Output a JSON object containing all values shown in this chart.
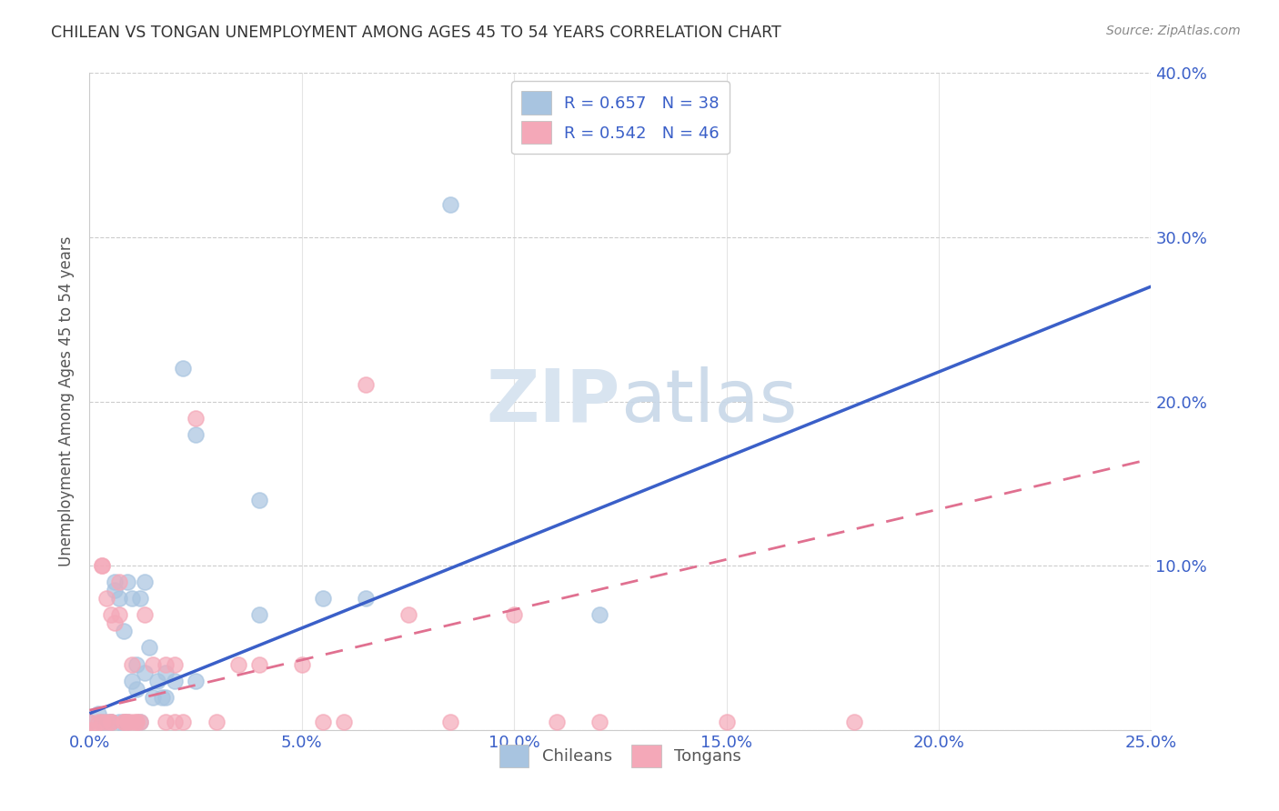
{
  "title": "CHILEAN VS TONGAN UNEMPLOYMENT AMONG AGES 45 TO 54 YEARS CORRELATION CHART",
  "source": "Source: ZipAtlas.com",
  "ylabel": "Unemployment Among Ages 45 to 54 years",
  "xlim": [
    0.0,
    0.25
  ],
  "ylim": [
    0.0,
    0.4
  ],
  "xticks": [
    0.0,
    0.05,
    0.1,
    0.15,
    0.2,
    0.25
  ],
  "yticks": [
    0.0,
    0.1,
    0.2,
    0.3,
    0.4
  ],
  "xtick_labels": [
    "0.0%",
    "5.0%",
    "10.0%",
    "15.0%",
    "20.0%",
    "25.0%"
  ],
  "ytick_labels_right": [
    "",
    "10.0%",
    "20.0%",
    "30.0%",
    "40.0%"
  ],
  "chilean_color": "#a8c4e0",
  "tongan_color": "#f4a8b8",
  "chilean_line_color": "#3a5fc8",
  "tongan_line_color": "#e07090",
  "legend_blue_color": "#3a5fc8",
  "r_chilean": 0.657,
  "n_chilean": 38,
  "r_tongan": 0.542,
  "n_tongan": 46,
  "chilean_scatter": [
    [
      0.0,
      0.005
    ],
    [
      0.002,
      0.01
    ],
    [
      0.003,
      0.005
    ],
    [
      0.004,
      0.005
    ],
    [
      0.005,
      0.005
    ],
    [
      0.005,
      0.005
    ],
    [
      0.006,
      0.085
    ],
    [
      0.006,
      0.09
    ],
    [
      0.007,
      0.005
    ],
    [
      0.007,
      0.08
    ],
    [
      0.008,
      0.06
    ],
    [
      0.008,
      0.005
    ],
    [
      0.009,
      0.09
    ],
    [
      0.009,
      0.005
    ],
    [
      0.01,
      0.08
    ],
    [
      0.01,
      0.03
    ],
    [
      0.011,
      0.04
    ],
    [
      0.011,
      0.025
    ],
    [
      0.012,
      0.08
    ],
    [
      0.012,
      0.005
    ],
    [
      0.013,
      0.09
    ],
    [
      0.013,
      0.035
    ],
    [
      0.014,
      0.05
    ],
    [
      0.015,
      0.02
    ],
    [
      0.016,
      0.03
    ],
    [
      0.017,
      0.02
    ],
    [
      0.018,
      0.035
    ],
    [
      0.018,
      0.02
    ],
    [
      0.02,
      0.03
    ],
    [
      0.022,
      0.22
    ],
    [
      0.025,
      0.18
    ],
    [
      0.025,
      0.03
    ],
    [
      0.04,
      0.14
    ],
    [
      0.04,
      0.07
    ],
    [
      0.055,
      0.08
    ],
    [
      0.065,
      0.08
    ],
    [
      0.085,
      0.32
    ],
    [
      0.12,
      0.07
    ]
  ],
  "tongan_scatter": [
    [
      0.0,
      0.005
    ],
    [
      0.0,
      0.0
    ],
    [
      0.001,
      0.0
    ],
    [
      0.002,
      0.005
    ],
    [
      0.003,
      0.1
    ],
    [
      0.003,
      0.1
    ],
    [
      0.003,
      0.005
    ],
    [
      0.004,
      0.005
    ],
    [
      0.004,
      0.08
    ],
    [
      0.005,
      0.07
    ],
    [
      0.005,
      0.005
    ],
    [
      0.005,
      0.005
    ],
    [
      0.006,
      0.065
    ],
    [
      0.007,
      0.09
    ],
    [
      0.007,
      0.07
    ],
    [
      0.008,
      0.005
    ],
    [
      0.008,
      0.005
    ],
    [
      0.009,
      0.005
    ],
    [
      0.009,
      0.005
    ],
    [
      0.01,
      0.04
    ],
    [
      0.01,
      0.005
    ],
    [
      0.011,
      0.005
    ],
    [
      0.011,
      0.005
    ],
    [
      0.012,
      0.005
    ],
    [
      0.013,
      0.07
    ],
    [
      0.015,
      0.04
    ],
    [
      0.018,
      0.005
    ],
    [
      0.018,
      0.04
    ],
    [
      0.02,
      0.005
    ],
    [
      0.02,
      0.04
    ],
    [
      0.022,
      0.005
    ],
    [
      0.025,
      0.19
    ],
    [
      0.03,
      0.005
    ],
    [
      0.035,
      0.04
    ],
    [
      0.04,
      0.04
    ],
    [
      0.05,
      0.04
    ],
    [
      0.055,
      0.005
    ],
    [
      0.06,
      0.005
    ],
    [
      0.065,
      0.21
    ],
    [
      0.075,
      0.07
    ],
    [
      0.085,
      0.005
    ],
    [
      0.1,
      0.07
    ],
    [
      0.11,
      0.005
    ],
    [
      0.12,
      0.005
    ],
    [
      0.15,
      0.005
    ],
    [
      0.18,
      0.005
    ]
  ],
  "background_color": "#ffffff",
  "grid_color": "#cccccc",
  "watermark_text": "ZIPatlas",
  "watermark_color": "#d8e4f0"
}
